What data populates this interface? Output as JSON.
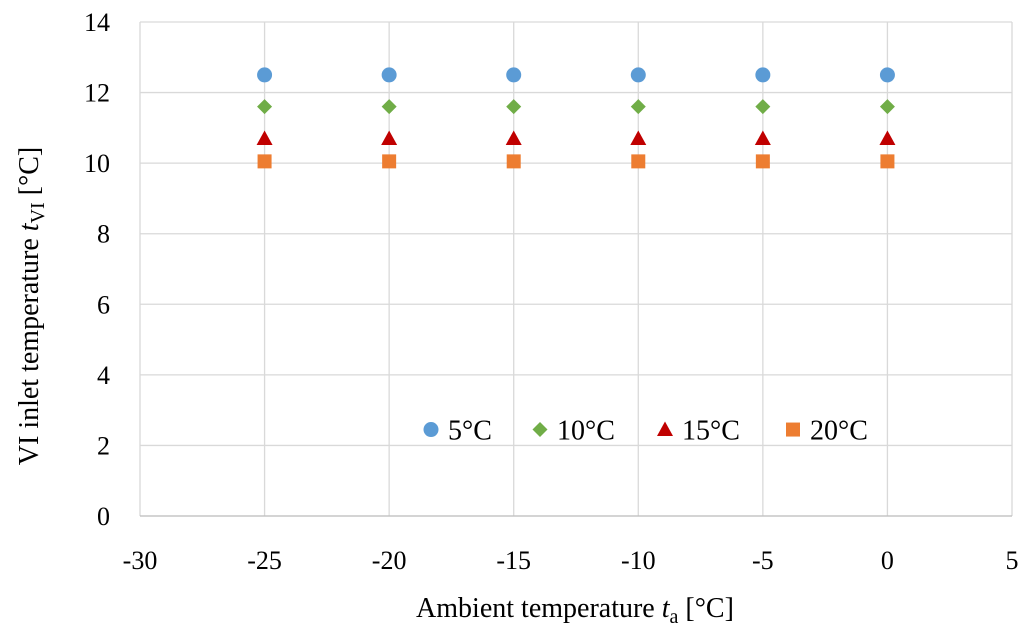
{
  "chart_data": {
    "type": "scatter",
    "x": [
      -25,
      -20,
      -15,
      -10,
      -5,
      0
    ],
    "series": [
      {
        "name": "5°C",
        "values": [
          12.5,
          12.5,
          12.5,
          12.5,
          12.5,
          12.5
        ],
        "color": "#5b9bd5",
        "marker": "circle"
      },
      {
        "name": "10°C",
        "values": [
          11.6,
          11.6,
          11.6,
          11.6,
          11.6,
          11.6
        ],
        "color": "#70ad47",
        "marker": "diamond"
      },
      {
        "name": "15°C",
        "values": [
          10.7,
          10.7,
          10.7,
          10.7,
          10.7,
          10.7
        ],
        "color": "#c00000",
        "marker": "triangle"
      },
      {
        "name": "20°C",
        "values": [
          10.05,
          10.05,
          10.05,
          10.05,
          10.05,
          10.05
        ],
        "color": "#ed7d31",
        "marker": "square"
      }
    ],
    "xlim": [
      -30,
      5
    ],
    "ylim": [
      0,
      14
    ],
    "xticks": [
      "-30",
      "-25",
      "-20",
      "-15",
      "-10",
      "-5",
      "0",
      "5"
    ],
    "yticks": [
      "0",
      "2",
      "4",
      "6",
      "8",
      "10",
      "12",
      "14"
    ],
    "xlabel": {
      "main": "Ambient  temperature  ",
      "var": "t",
      "sub": "a",
      "unit": " [°C]"
    },
    "ylabel": {
      "main": "VI inlet  temperature  ",
      "var": "t",
      "sub": "VI",
      "unit": " [°C]"
    },
    "grid": true,
    "legend": "inside-bottom-center"
  }
}
